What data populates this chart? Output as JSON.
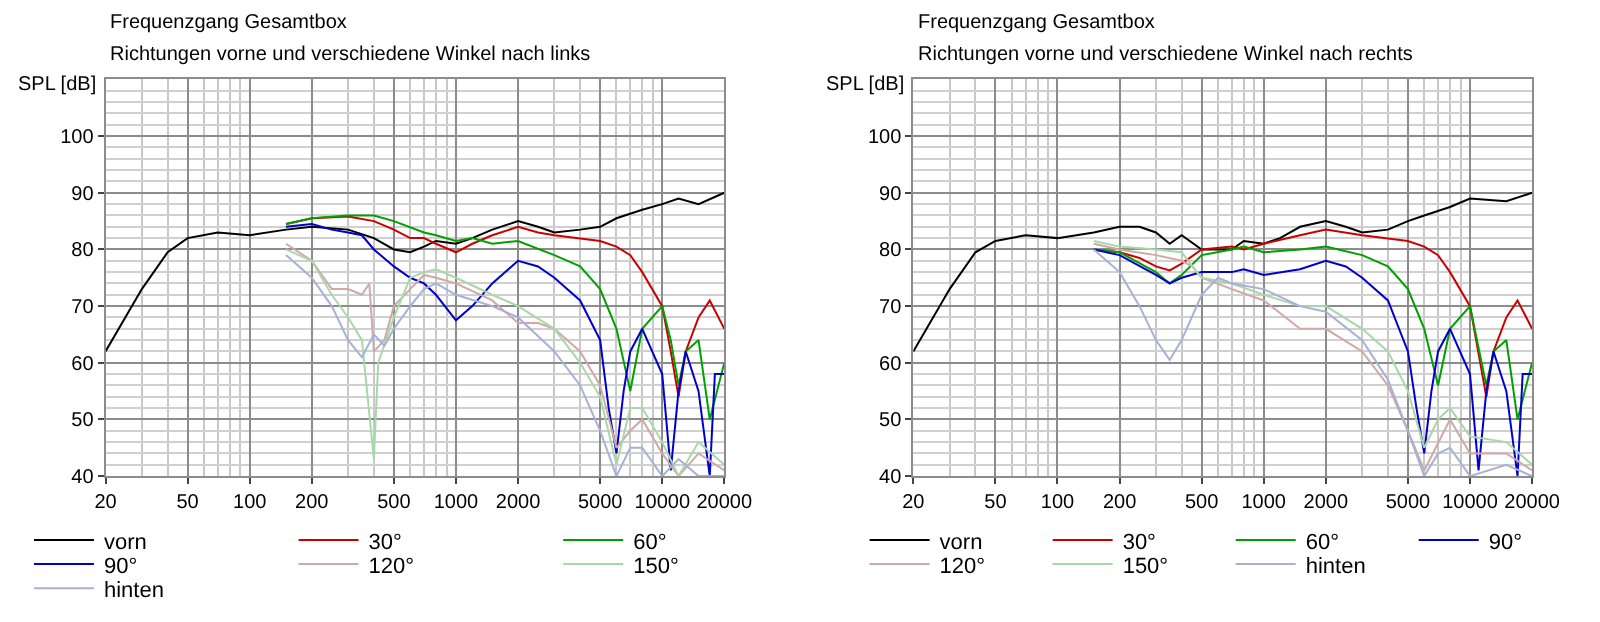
{
  "chart_data": [
    {
      "type": "line",
      "title": "Frequenzgang Gesamtbox",
      "subtitle": "Richtungen vorne und verschiedene Winkel nach links",
      "ylabel": "SPL [dB]",
      "xlim": [
        20,
        20000
      ],
      "xticks": [
        20,
        50,
        100,
        200,
        500,
        1000,
        2000,
        5000,
        10000,
        20000
      ],
      "ylim": [
        40,
        110
      ],
      "yticks": [
        40,
        50,
        60,
        70,
        80,
        90,
        100
      ],
      "log": "x",
      "grid": true,
      "legend": "bottom",
      "marker": "none",
      "line_style": "solid",
      "series": [
        {
          "name": "vorn",
          "color": "#000000",
          "x": [
            20,
            30,
            40,
            50,
            70,
            100,
            150,
            200,
            300,
            400,
            500,
            600,
            700,
            800,
            1000,
            1200,
            1500,
            2000,
            2500,
            3000,
            4000,
            5000,
            6000,
            8000,
            10000,
            12000,
            15000,
            20000
          ],
          "values": [
            62,
            73,
            79.5,
            82,
            83,
            82.5,
            83.5,
            84,
            83.5,
            82,
            80,
            79.5,
            80.5,
            81.5,
            81,
            82,
            83.5,
            85,
            84,
            83,
            83.5,
            84,
            85.5,
            87,
            88,
            89,
            88,
            90
          ]
        },
        {
          "name": "30°",
          "color": "#cc0000",
          "x": [
            150,
            200,
            300,
            400,
            500,
            600,
            700,
            800,
            1000,
            1200,
            1500,
            2000,
            2500,
            3000,
            5000,
            6000,
            7000,
            8000,
            10000,
            11000,
            12000,
            13000,
            15000,
            17000,
            20000
          ],
          "values": [
            84.5,
            85.5,
            85.8,
            85,
            83.5,
            82,
            82,
            81,
            79.5,
            81,
            82.5,
            84,
            83,
            82.5,
            81.5,
            80.5,
            79,
            76,
            70,
            62,
            54,
            62,
            68,
            71,
            66
          ]
        },
        {
          "name": "60°",
          "color": "#00a000",
          "x": [
            150,
            200,
            300,
            400,
            500,
            700,
            800,
            1000,
            1200,
            1500,
            2000,
            3000,
            4000,
            5000,
            6000,
            7000,
            8000,
            10000,
            11000,
            12000,
            13000,
            15000,
            17000,
            20000
          ],
          "values": [
            84.5,
            85.5,
            86,
            86,
            85,
            83,
            82.5,
            81.5,
            82,
            81,
            81.5,
            79,
            77,
            73,
            66,
            55,
            66,
            70,
            64,
            56,
            62,
            64,
            50,
            60
          ]
        },
        {
          "name": "90°",
          "color": "#0000cc",
          "x": [
            150,
            200,
            250,
            300,
            350,
            400,
            500,
            600,
            700,
            800,
            1000,
            1200,
            1500,
            2000,
            2500,
            3000,
            4000,
            5000,
            5500,
            6000,
            6500,
            7000,
            8000,
            10000,
            11000,
            12000,
            13000,
            15000,
            17000,
            18000,
            20000
          ],
          "values": [
            84,
            84.5,
            83.5,
            83,
            82.5,
            80,
            77,
            75,
            74,
            72,
            67.5,
            70,
            74,
            78,
            77,
            75,
            71,
            64,
            52,
            44,
            55,
            62,
            66,
            58,
            41,
            55,
            62,
            55,
            40,
            58,
            58
          ]
        },
        {
          "name": "120°",
          "color": "#d0a8a8",
          "x": [
            150,
            200,
            250,
            300,
            350,
            380,
            400,
            450,
            500,
            600,
            700,
            800,
            1000,
            1500,
            2000,
            2500,
            3000,
            4000,
            5000,
            6000,
            7000,
            8000,
            10000,
            12000,
            15000,
            20000
          ],
          "values": [
            81,
            78,
            73,
            73,
            72,
            74,
            62,
            64,
            70,
            73,
            75.5,
            75,
            74,
            71,
            67,
            67,
            66,
            62,
            56,
            45,
            48,
            50,
            44,
            40,
            44,
            41
          ]
        },
        {
          "name": "150°",
          "color": "#a8d8a8",
          "x": [
            150,
            200,
            250,
            300,
            350,
            400,
            420,
            500,
            600,
            700,
            800,
            1000,
            1500,
            2000,
            3000,
            4000,
            5000,
            6000,
            7000,
            8000,
            10000,
            12000,
            15000,
            20000
          ],
          "values": [
            80,
            78,
            72,
            68,
            64,
            43,
            60,
            68,
            75,
            76,
            76.5,
            75,
            72,
            70,
            66,
            60,
            54,
            42,
            52,
            52,
            46,
            40,
            46,
            42
          ]
        },
        {
          "name": "hinten",
          "color": "#a8b0d8",
          "x": [
            150,
            200,
            250,
            300,
            350,
            400,
            450,
            500,
            600,
            700,
            800,
            1000,
            1500,
            2000,
            3000,
            4000,
            5000,
            6000,
            7000,
            8000,
            10000,
            12000,
            15000,
            20000
          ],
          "values": [
            79,
            75,
            70,
            64,
            61,
            65,
            63,
            66,
            70,
            73,
            74,
            72,
            70,
            68,
            62,
            56,
            48,
            40,
            45,
            45,
            40,
            43,
            40,
            40
          ]
        }
      ]
    },
    {
      "type": "line",
      "title": "Frequenzgang Gesamtbox",
      "subtitle": "Richtungen vorne und verschiedene Winkel nach rechts",
      "ylabel": "SPL [dB]",
      "xlim": [
        20,
        20000
      ],
      "xticks": [
        20,
        50,
        100,
        200,
        500,
        1000,
        2000,
        5000,
        10000,
        20000
      ],
      "ylim": [
        40,
        110
      ],
      "yticks": [
        40,
        50,
        60,
        70,
        80,
        90,
        100
      ],
      "log": "x",
      "grid": true,
      "legend": "bottom",
      "marker": "none",
      "line_style": "solid",
      "series": [
        {
          "name": "vorn",
          "color": "#000000",
          "x": [
            20,
            30,
            40,
            50,
            70,
            100,
            150,
            200,
            250,
            300,
            350,
            400,
            500,
            700,
            800,
            1000,
            1200,
            1500,
            2000,
            2500,
            3000,
            4000,
            5000,
            6000,
            8000,
            10000,
            15000,
            20000
          ],
          "values": [
            62,
            73,
            79.5,
            81.5,
            82.5,
            82,
            83,
            84,
            84,
            83,
            81,
            82.5,
            80,
            80,
            81.5,
            81,
            82,
            84,
            85,
            84,
            83,
            83.5,
            85,
            86,
            87.5,
            89,
            88.5,
            90
          ]
        },
        {
          "name": "30°",
          "color": "#cc0000",
          "x": [
            150,
            200,
            250,
            300,
            350,
            400,
            500,
            700,
            800,
            1000,
            1500,
            2000,
            3000,
            5000,
            6000,
            7000,
            8000,
            10000,
            12000,
            13000,
            15000,
            17000,
            20000
          ],
          "values": [
            80,
            79.5,
            78.5,
            77,
            76.3,
            77.5,
            80,
            80.5,
            80,
            81,
            82.5,
            83.5,
            82.5,
            81.5,
            80.5,
            79,
            76,
            70,
            54,
            62,
            68,
            71,
            66
          ]
        },
        {
          "name": "60°",
          "color": "#00a000",
          "x": [
            150,
            200,
            300,
            350,
            400,
            500,
            700,
            800,
            1000,
            1500,
            2000,
            3000,
            4000,
            5000,
            6000,
            7000,
            8000,
            10000,
            12000,
            13000,
            15000,
            17000,
            20000
          ],
          "values": [
            80,
            79.5,
            76,
            74,
            75.5,
            79,
            80,
            80.5,
            79.5,
            80,
            80.5,
            79,
            77,
            73,
            66,
            56,
            66,
            70,
            56,
            62,
            64,
            50,
            60
          ]
        },
        {
          "name": "90°",
          "color": "#0000cc",
          "x": [
            150,
            200,
            300,
            350,
            400,
            500,
            700,
            800,
            1000,
            1500,
            2000,
            2500,
            3000,
            4000,
            5000,
            5500,
            6000,
            6500,
            7000,
            8000,
            10000,
            11000,
            12000,
            13000,
            15000,
            17000,
            18000,
            20000
          ],
          "values": [
            80,
            79,
            75.5,
            74,
            75,
            76,
            76,
            76.5,
            75.5,
            76.5,
            78,
            77,
            75,
            71,
            62,
            52,
            44,
            55,
            62,
            66,
            58,
            41,
            55,
            62,
            55,
            40,
            58,
            58
          ]
        },
        {
          "name": "120°",
          "color": "#d0a8a8",
          "x": [
            150,
            200,
            300,
            400,
            450,
            500,
            700,
            1000,
            1500,
            2000,
            3000,
            4000,
            5000,
            6000,
            8000,
            10000,
            15000,
            20000
          ],
          "values": [
            81,
            80,
            79,
            78,
            77,
            75,
            73,
            71,
            66,
            66,
            62,
            56,
            48,
            41,
            50,
            44,
            44,
            41
          ]
        },
        {
          "name": "150°",
          "color": "#a8d8a8",
          "x": [
            150,
            200,
            300,
            400,
            500,
            700,
            1000,
            1500,
            2000,
            3000,
            4000,
            5000,
            6000,
            7000,
            8000,
            10000,
            15000,
            20000
          ],
          "values": [
            81.5,
            80.5,
            80,
            79.5,
            75,
            74,
            72,
            70,
            70,
            66,
            62,
            55,
            45,
            50,
            52,
            47,
            46,
            42
          ]
        },
        {
          "name": "hinten",
          "color": "#a8b0d8",
          "x": [
            150,
            200,
            250,
            300,
            350,
            400,
            500,
            600,
            700,
            1000,
            1500,
            2000,
            3000,
            4000,
            5000,
            6000,
            7000,
            8000,
            10000,
            15000,
            20000
          ],
          "values": [
            80,
            76,
            70,
            64,
            60.5,
            64,
            72,
            75,
            74,
            73,
            70,
            69,
            64,
            57,
            48,
            40,
            44,
            45,
            40,
            42,
            40
          ]
        }
      ]
    }
  ]
}
